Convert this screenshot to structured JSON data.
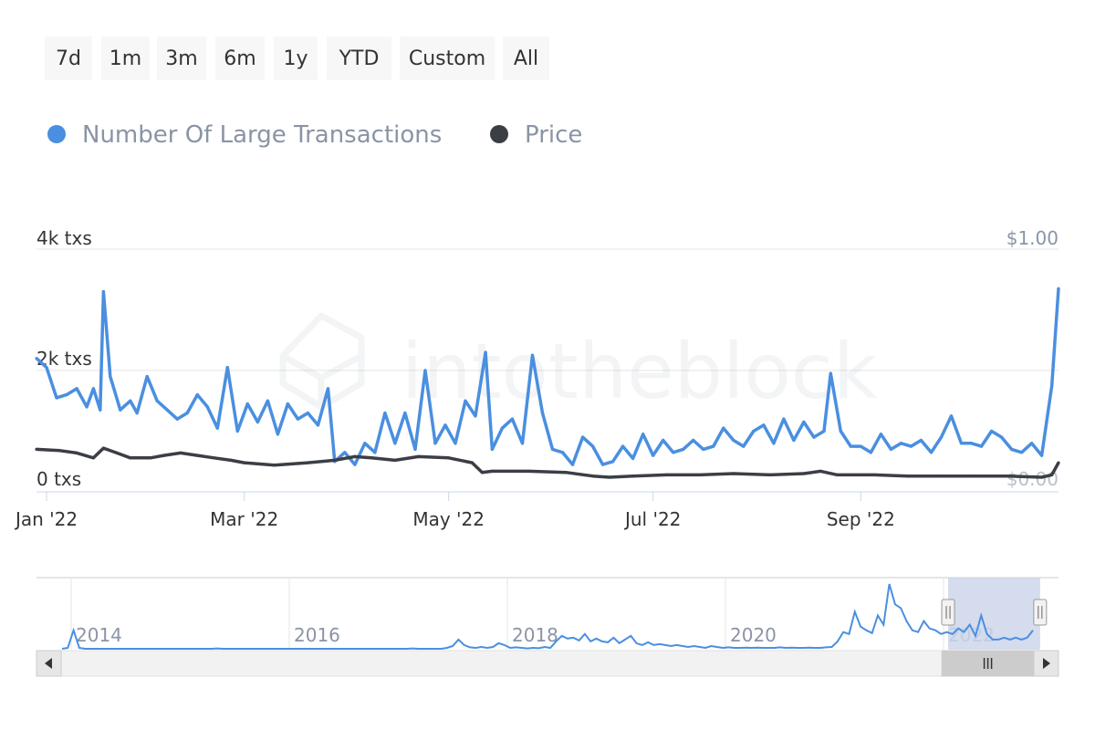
{
  "range_selector": {
    "buttons": [
      "7d",
      "1m",
      "3m",
      "6m",
      "1y",
      "YTD",
      "Custom",
      "All"
    ]
  },
  "colors": {
    "transactions": "#4a8fe0",
    "price": "#3b3f45",
    "navigator_mask": "#ccd6eb",
    "grid": "#e6e6e6"
  },
  "chart_data": {
    "type": "line",
    "watermark": "intotheblock",
    "x_ticks": [
      "Jan '22",
      "Mar '22",
      "May '22",
      "Jul '22",
      "Sep '22"
    ],
    "y_left_ticks": [
      "0 txs",
      "2k txs",
      "4k txs"
    ],
    "y_right_ticks": [
      "$0.00",
      "$1.00"
    ],
    "y_left_range": [
      0,
      4000
    ],
    "y_right_range": [
      0,
      1
    ],
    "legend_position": "top-left",
    "grid": true,
    "series": [
      {
        "name": "Number Of Large Transactions",
        "axis": "left",
        "points": [
          [
            "2021-12-29",
            2200
          ],
          [
            "2022-01-01",
            2050
          ],
          [
            "2022-01-04",
            1550
          ],
          [
            "2022-01-07",
            1600
          ],
          [
            "2022-01-10",
            1700
          ],
          [
            "2022-01-13",
            1400
          ],
          [
            "2022-01-15",
            1700
          ],
          [
            "2022-01-17",
            1350
          ],
          [
            "2022-01-18",
            3300
          ],
          [
            "2022-01-20",
            1900
          ],
          [
            "2022-01-23",
            1350
          ],
          [
            "2022-01-26",
            1500
          ],
          [
            "2022-01-28",
            1300
          ],
          [
            "2022-01-31",
            1900
          ],
          [
            "2022-02-03",
            1500
          ],
          [
            "2022-02-06",
            1350
          ],
          [
            "2022-02-09",
            1200
          ],
          [
            "2022-02-12",
            1300
          ],
          [
            "2022-02-15",
            1600
          ],
          [
            "2022-02-18",
            1400
          ],
          [
            "2022-02-21",
            1050
          ],
          [
            "2022-02-24",
            2050
          ],
          [
            "2022-02-27",
            1000
          ],
          [
            "2022-03-02",
            1450
          ],
          [
            "2022-03-05",
            1150
          ],
          [
            "2022-03-08",
            1500
          ],
          [
            "2022-03-11",
            950
          ],
          [
            "2022-03-14",
            1450
          ],
          [
            "2022-03-17",
            1200
          ],
          [
            "2022-03-20",
            1300
          ],
          [
            "2022-03-23",
            1100
          ],
          [
            "2022-03-26",
            1700
          ],
          [
            "2022-03-28",
            500
          ],
          [
            "2022-03-31",
            650
          ],
          [
            "2022-04-03",
            450
          ],
          [
            "2022-04-06",
            800
          ],
          [
            "2022-04-09",
            650
          ],
          [
            "2022-04-12",
            1300
          ],
          [
            "2022-04-15",
            800
          ],
          [
            "2022-04-18",
            1300
          ],
          [
            "2022-04-21",
            700
          ],
          [
            "2022-04-24",
            2000
          ],
          [
            "2022-04-27",
            800
          ],
          [
            "2022-04-30",
            1100
          ],
          [
            "2022-05-03",
            800
          ],
          [
            "2022-05-06",
            1500
          ],
          [
            "2022-05-09",
            1250
          ],
          [
            "2022-05-12",
            2300
          ],
          [
            "2022-05-14",
            700
          ],
          [
            "2022-05-17",
            1050
          ],
          [
            "2022-05-20",
            1200
          ],
          [
            "2022-05-23",
            800
          ],
          [
            "2022-05-26",
            2250
          ],
          [
            "2022-05-29",
            1300
          ],
          [
            "2022-06-01",
            700
          ],
          [
            "2022-06-04",
            650
          ],
          [
            "2022-06-07",
            450
          ],
          [
            "2022-06-10",
            900
          ],
          [
            "2022-06-13",
            750
          ],
          [
            "2022-06-16",
            450
          ],
          [
            "2022-06-19",
            500
          ],
          [
            "2022-06-22",
            750
          ],
          [
            "2022-06-25",
            550
          ],
          [
            "2022-06-28",
            950
          ],
          [
            "2022-07-01",
            600
          ],
          [
            "2022-07-04",
            850
          ],
          [
            "2022-07-07",
            650
          ],
          [
            "2022-07-10",
            700
          ],
          [
            "2022-07-13",
            850
          ],
          [
            "2022-07-16",
            700
          ],
          [
            "2022-07-19",
            750
          ],
          [
            "2022-07-22",
            1050
          ],
          [
            "2022-07-25",
            850
          ],
          [
            "2022-07-28",
            750
          ],
          [
            "2022-07-31",
            1000
          ],
          [
            "2022-08-03",
            1100
          ],
          [
            "2022-08-06",
            800
          ],
          [
            "2022-08-09",
            1200
          ],
          [
            "2022-08-12",
            850
          ],
          [
            "2022-08-15",
            1150
          ],
          [
            "2022-08-18",
            900
          ],
          [
            "2022-08-21",
            1000
          ],
          [
            "2022-08-23",
            1950
          ],
          [
            "2022-08-26",
            1000
          ],
          [
            "2022-08-29",
            750
          ],
          [
            "2022-09-01",
            750
          ],
          [
            "2022-09-04",
            650
          ],
          [
            "2022-09-07",
            950
          ],
          [
            "2022-09-10",
            700
          ],
          [
            "2022-09-13",
            800
          ],
          [
            "2022-09-16",
            750
          ],
          [
            "2022-09-19",
            850
          ],
          [
            "2022-09-22",
            650
          ],
          [
            "2022-09-25",
            900
          ],
          [
            "2022-09-28",
            1250
          ],
          [
            "2022-10-01",
            800
          ],
          [
            "2022-10-04",
            800
          ],
          [
            "2022-10-07",
            750
          ],
          [
            "2022-10-10",
            1000
          ],
          [
            "2022-10-13",
            900
          ],
          [
            "2022-10-16",
            700
          ],
          [
            "2022-10-19",
            650
          ],
          [
            "2022-10-22",
            800
          ],
          [
            "2022-10-25",
            600
          ],
          [
            "2022-10-28",
            1750
          ],
          [
            "2022-10-30",
            3350
          ]
        ]
      },
      {
        "name": "Price",
        "axis": "right",
        "points": [
          [
            "2021-12-29",
            0.175
          ],
          [
            "2022-01-05",
            0.17
          ],
          [
            "2022-01-10",
            0.16
          ],
          [
            "2022-01-15",
            0.14
          ],
          [
            "2022-01-18",
            0.18
          ],
          [
            "2022-01-22",
            0.16
          ],
          [
            "2022-01-26",
            0.14
          ],
          [
            "2022-02-01",
            0.14
          ],
          [
            "2022-02-05",
            0.15
          ],
          [
            "2022-02-10",
            0.16
          ],
          [
            "2022-02-15",
            0.15
          ],
          [
            "2022-02-20",
            0.14
          ],
          [
            "2022-02-25",
            0.13
          ],
          [
            "2022-03-01",
            0.12
          ],
          [
            "2022-03-10",
            0.11
          ],
          [
            "2022-03-20",
            0.12
          ],
          [
            "2022-03-28",
            0.13
          ],
          [
            "2022-04-03",
            0.145
          ],
          [
            "2022-04-08",
            0.14
          ],
          [
            "2022-04-15",
            0.13
          ],
          [
            "2022-04-22",
            0.145
          ],
          [
            "2022-05-01",
            0.14
          ],
          [
            "2022-05-08",
            0.12
          ],
          [
            "2022-05-11",
            0.08
          ],
          [
            "2022-05-14",
            0.085
          ],
          [
            "2022-05-25",
            0.085
          ],
          [
            "2022-06-05",
            0.08
          ],
          [
            "2022-06-13",
            0.065
          ],
          [
            "2022-06-18",
            0.06
          ],
          [
            "2022-06-25",
            0.065
          ],
          [
            "2022-07-05",
            0.07
          ],
          [
            "2022-07-15",
            0.07
          ],
          [
            "2022-07-25",
            0.075
          ],
          [
            "2022-08-05",
            0.07
          ],
          [
            "2022-08-15",
            0.075
          ],
          [
            "2022-08-20",
            0.085
          ],
          [
            "2022-08-25",
            0.07
          ],
          [
            "2022-09-05",
            0.07
          ],
          [
            "2022-09-15",
            0.065
          ],
          [
            "2022-09-25",
            0.065
          ],
          [
            "2022-10-05",
            0.065
          ],
          [
            "2022-10-15",
            0.065
          ],
          [
            "2022-10-25",
            0.06
          ],
          [
            "2022-10-28",
            0.07
          ],
          [
            "2022-10-30",
            0.12
          ]
        ]
      }
    ]
  },
  "navigator": {
    "year_labels": [
      "2014",
      "2016",
      "2018",
      "2020",
      "2022"
    ],
    "series_values": [
      0,
      0.05,
      1,
      0.05,
      0,
      0,
      0,
      0,
      0,
      0,
      0,
      0,
      0,
      0,
      0,
      0,
      0,
      0,
      0,
      0,
      0,
      0,
      0,
      0,
      0,
      0,
      0,
      0.02,
      0,
      0,
      0,
      0,
      0,
      0,
      0,
      0,
      0,
      0,
      0,
      0,
      0,
      0,
      0,
      0,
      0,
      0,
      0,
      0,
      0,
      0,
      0,
      0,
      0,
      0,
      0,
      0,
      0,
      0,
      0,
      0,
      0,
      0.02,
      0,
      0,
      0,
      0,
      0,
      0.05,
      0.15,
      0.5,
      0.2,
      0.08,
      0.05,
      0.1,
      0.05,
      0.1,
      0.3,
      0.2,
      0.05,
      0.08,
      0.05,
      0.02,
      0.05,
      0.03,
      0.1,
      0.05,
      0.4,
      0.7,
      0.55,
      0.6,
      0.45,
      0.8,
      0.4,
      0.55,
      0.4,
      0.35,
      0.6,
      0.3,
      0.5,
      0.7,
      0.3,
      0.2,
      0.35,
      0.2,
      0.25,
      0.2,
      0.15,
      0.2,
      0.15,
      0.1,
      0.15,
      0.1,
      0.05,
      0.15,
      0.1,
      0.05,
      0.08,
      0.05,
      0.05,
      0.06,
      0.05,
      0.06,
      0.05,
      0.05,
      0.05,
      0.08,
      0.05,
      0.06,
      0.05,
      0.05,
      0.06,
      0.05,
      0.05,
      0.08,
      0.1,
      0.4,
      0.9,
      0.8,
      2.0,
      1.2,
      1.0,
      0.85,
      1.8,
      1.3,
      3.5,
      2.4,
      2.2,
      1.5,
      1.0,
      0.9,
      1.5,
      1.1,
      1.0,
      0.8,
      0.9,
      0.8,
      1.1,
      0.9,
      1.3,
      0.7,
      1.8,
      0.8,
      0.5,
      0.5,
      0.6,
      0.5,
      0.6,
      0.5,
      0.6,
      1.0
    ],
    "selected_fraction": [
      0.892,
      0.982
    ]
  }
}
